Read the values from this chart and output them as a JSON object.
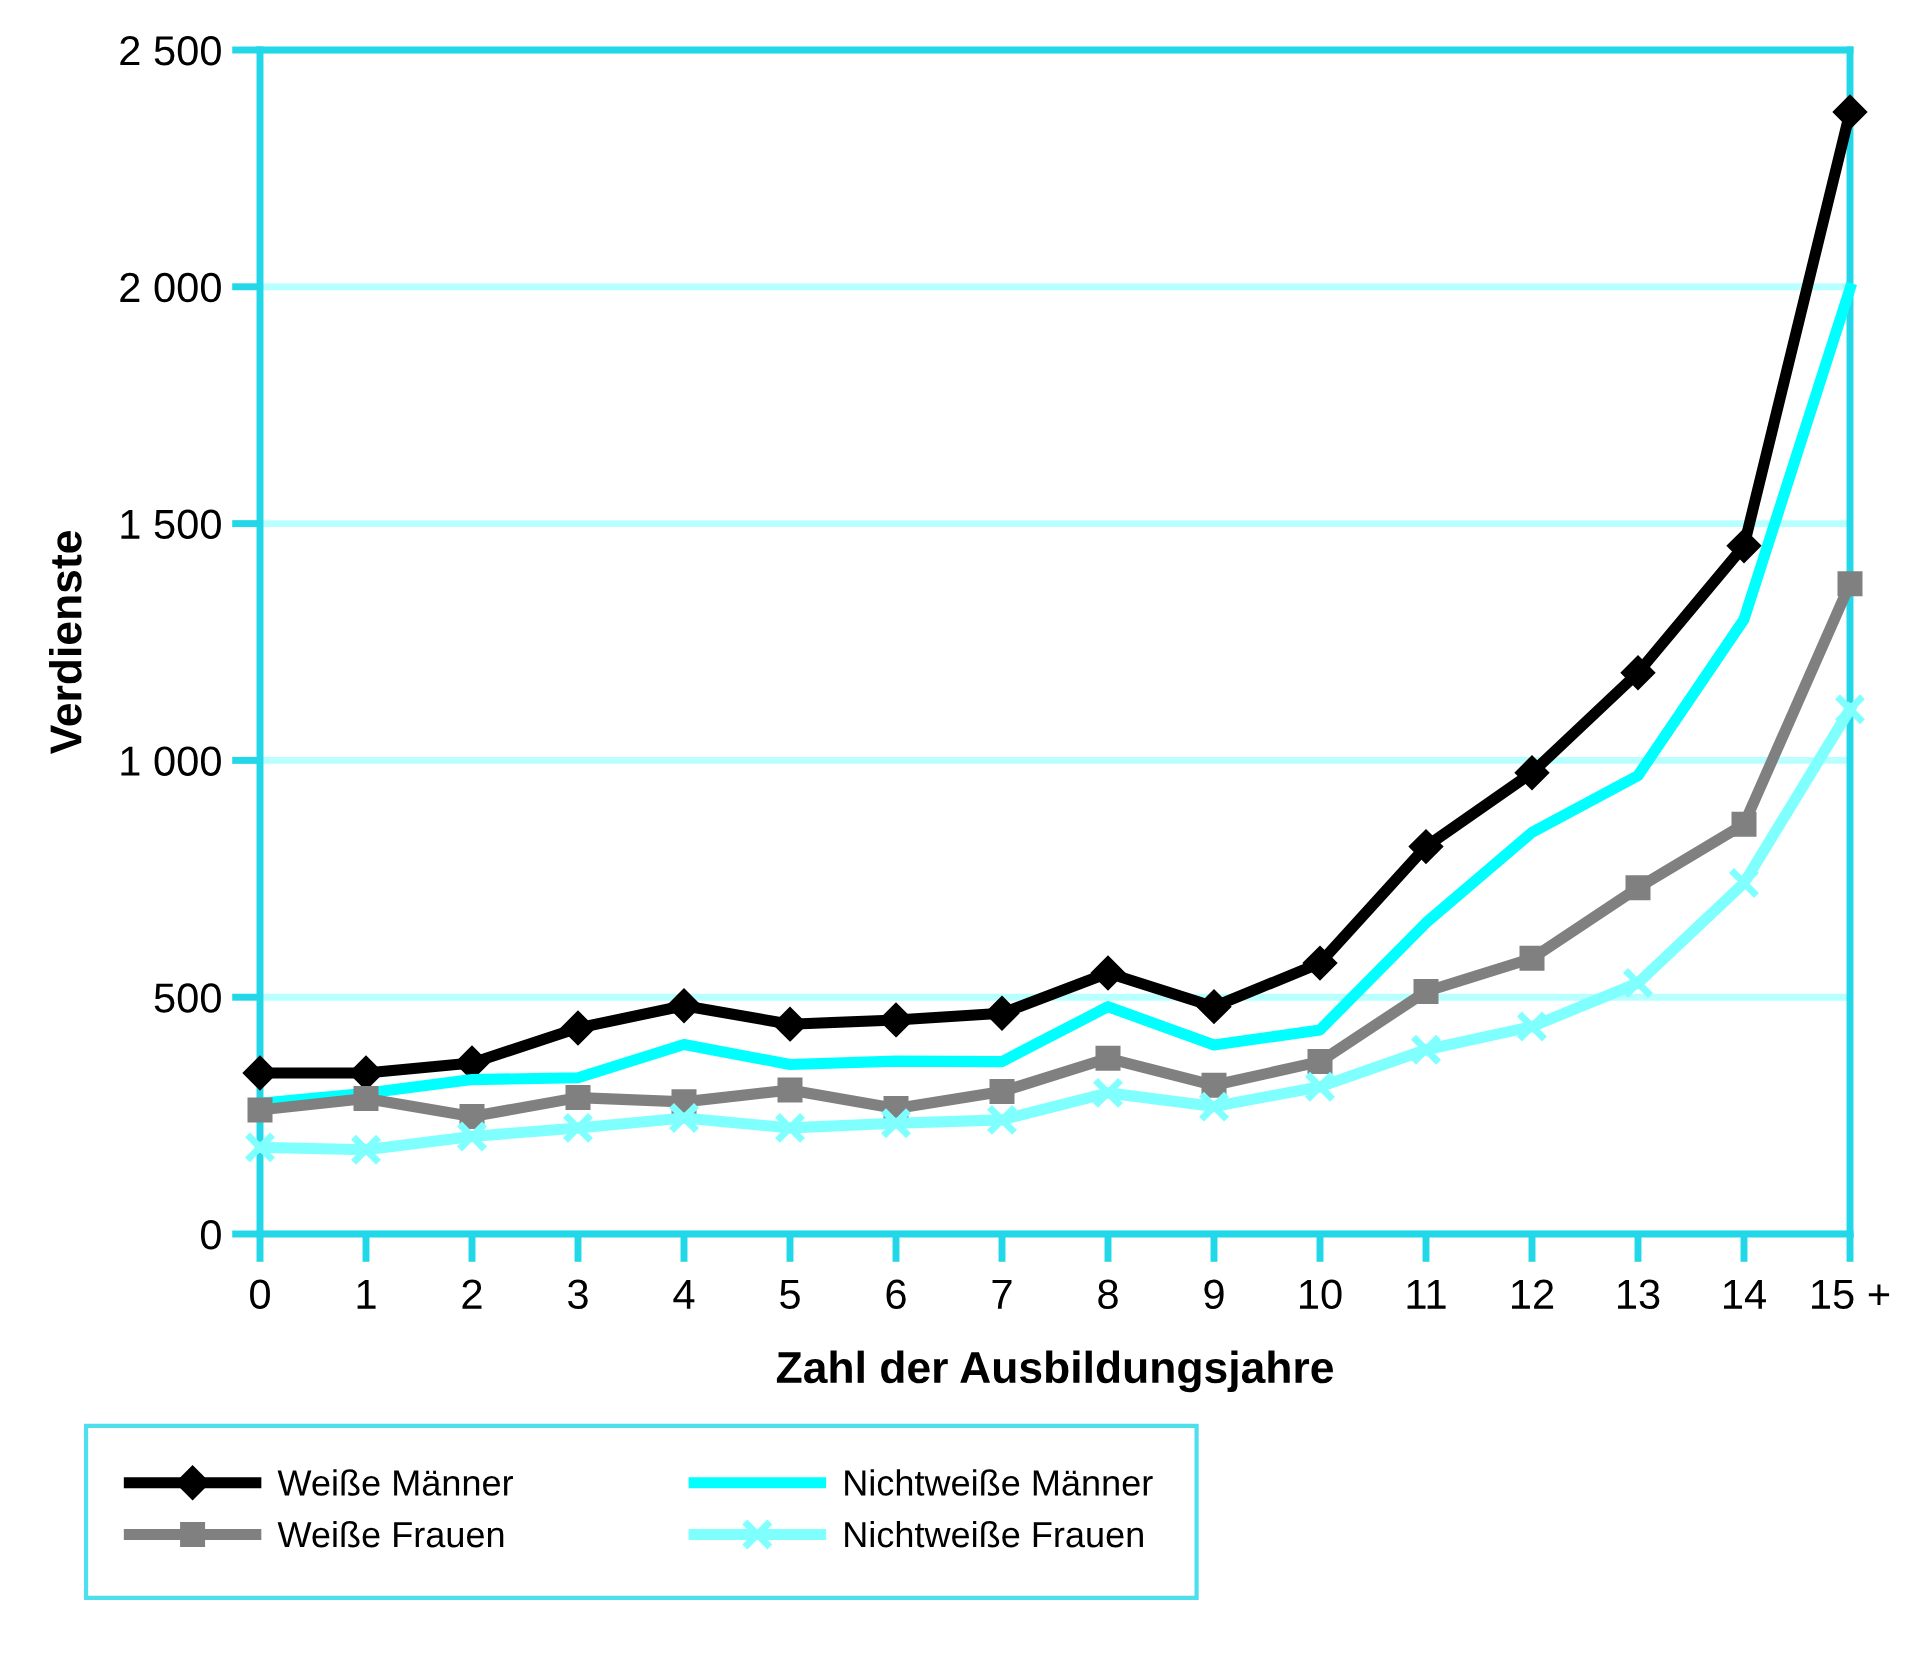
{
  "chart_data": {
    "type": "line",
    "xlabel": "Zahl der Ausbildungsjahre",
    "ylabel": "Verdienste",
    "categories": [
      "0",
      "1",
      "2",
      "3",
      "4",
      "5",
      "6",
      "7",
      "8",
      "9",
      "10",
      "11",
      "12",
      "13",
      "14",
      "15 +"
    ],
    "series": [
      {
        "name": "Weiße Männer",
        "color": "#000000",
        "marker": "diamond",
        "values": [
          340,
          340,
          361,
          435,
          482,
          443,
          452,
          466,
          551,
          480,
          572,
          818,
          974,
          1185,
          1453,
          2369
        ]
      },
      {
        "name": "Nichtweiße Männer",
        "color": "#00ffff",
        "marker": "none",
        "values": [
          276,
          297,
          326,
          330,
          400,
          358,
          365,
          364,
          480,
          399,
          431,
          657,
          848,
          968,
          1298,
          1996
        ]
      },
      {
        "name": "Weiße Frauen",
        "color": "#808080",
        "marker": "square",
        "values": [
          262,
          286,
          248,
          288,
          279,
          304,
          265,
          301,
          371,
          314,
          364,
          512,
          582,
          731,
          865,
          1373
        ]
      },
      {
        "name": "Nichtweiße Frauen",
        "color": "#80ffff",
        "marker": "cross",
        "values": [
          183,
          178,
          206,
          224,
          245,
          224,
          234,
          241,
          298,
          269,
          311,
          389,
          438,
          530,
          741,
          1108
        ]
      }
    ],
    "ylim": [
      0,
      2500
    ],
    "yticks": [
      0,
      {
        "value": 500,
        "label": "500"
      },
      {
        "value": 1000,
        "label": "1 000"
      },
      {
        "value": 1500,
        "label": "1 500"
      },
      {
        "value": 2000,
        "label": "2 000"
      },
      {
        "value": 2500,
        "label": "2 500"
      }
    ],
    "grid": "y",
    "legend": "bottom left",
    "line_style": "solid"
  }
}
